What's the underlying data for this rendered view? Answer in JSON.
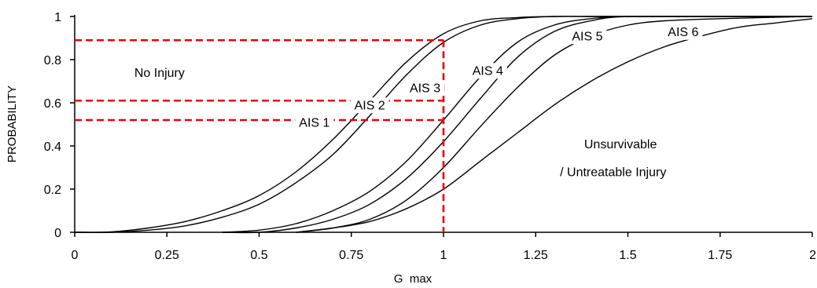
{
  "chart_data": {
    "type": "line",
    "xlabel": "G  max",
    "ylabel": "PROBABILITY",
    "xlim": [
      0,
      2
    ],
    "ylim": [
      0,
      1
    ],
    "x_ticks": [
      "0",
      "0.25",
      "0.5",
      "0.75",
      "1",
      "1.25",
      "1.5",
      "1.75",
      "2"
    ],
    "y_ticks": [
      "0",
      "0.2",
      "0.4",
      "0.6",
      "0.8",
      "1"
    ],
    "grid": false,
    "series": [
      {
        "name": "AIS 1",
        "x": [
          0.0,
          0.1,
          0.2,
          0.3,
          0.4,
          0.5,
          0.6,
          0.7,
          0.8,
          0.9,
          1.0,
          1.1,
          1.2,
          1.3,
          1.4,
          1.5,
          1.75,
          2.0
        ],
        "y": [
          0.0,
          0.002,
          0.02,
          0.05,
          0.1,
          0.17,
          0.28,
          0.43,
          0.61,
          0.79,
          0.92,
          0.98,
          0.995,
          1.0,
          1.0,
          1.0,
          1.0,
          1.0
        ]
      },
      {
        "name": "AIS 2",
        "x": [
          0.0,
          0.1,
          0.2,
          0.3,
          0.4,
          0.5,
          0.6,
          0.7,
          0.8,
          0.9,
          1.0,
          1.1,
          1.2,
          1.3,
          1.4,
          1.5,
          1.75,
          2.0
        ],
        "y": [
          0.0,
          0.0,
          0.01,
          0.03,
          0.07,
          0.13,
          0.23,
          0.36,
          0.54,
          0.73,
          0.88,
          0.96,
          0.99,
          1.0,
          1.0,
          1.0,
          1.0,
          1.0
        ]
      },
      {
        "name": "AIS 3",
        "x": [
          0.4,
          0.5,
          0.6,
          0.7,
          0.8,
          0.9,
          1.0,
          1.1,
          1.2,
          1.3,
          1.4,
          1.5,
          1.75,
          2.0
        ],
        "y": [
          0.0,
          0.01,
          0.04,
          0.1,
          0.19,
          0.33,
          0.52,
          0.72,
          0.88,
          0.96,
          0.99,
          1.0,
          1.0,
          1.0
        ]
      },
      {
        "name": "AIS 4",
        "x": [
          0.4,
          0.5,
          0.6,
          0.7,
          0.8,
          0.9,
          1.0,
          1.1,
          1.2,
          1.3,
          1.4,
          1.5,
          1.75,
          2.0
        ],
        "y": [
          0.0,
          0.0,
          0.02,
          0.06,
          0.13,
          0.25,
          0.42,
          0.62,
          0.81,
          0.93,
          0.98,
          1.0,
          1.0,
          1.0
        ]
      },
      {
        "name": "AIS 5",
        "x": [
          0.6,
          0.7,
          0.8,
          0.9,
          1.0,
          1.1,
          1.2,
          1.3,
          1.4,
          1.5,
          1.6,
          1.75,
          2.0
        ],
        "y": [
          0.0,
          0.02,
          0.06,
          0.15,
          0.3,
          0.49,
          0.67,
          0.82,
          0.91,
          0.96,
          0.98,
          0.99,
          1.0
        ]
      },
      {
        "name": "AIS 6",
        "x": [
          0.6,
          0.7,
          0.8,
          0.9,
          1.0,
          1.1,
          1.2,
          1.3,
          1.4,
          1.5,
          1.6,
          1.7,
          1.8,
          1.9,
          2.0
        ],
        "y": [
          0.0,
          0.02,
          0.05,
          0.11,
          0.2,
          0.33,
          0.46,
          0.59,
          0.7,
          0.79,
          0.86,
          0.91,
          0.95,
          0.97,
          0.99
        ]
      }
    ],
    "reference_lines": [
      {
        "x": 1,
        "y": 0.89
      },
      {
        "x": 1,
        "y": 0.61
      },
      {
        "x": 1,
        "y": 0.52
      }
    ],
    "reference_color": "#e8000b",
    "annotations": [
      {
        "text": "No Injury",
        "x": 0.23,
        "y": 0.72
      },
      {
        "text": "AIS 1",
        "x": 0.65,
        "y": 0.49
      },
      {
        "text": "AIS 2",
        "x": 0.8,
        "y": 0.57
      },
      {
        "text": "AIS 3",
        "x": 0.95,
        "y": 0.65
      },
      {
        "text": "AIS 4",
        "x": 1.12,
        "y": 0.73
      },
      {
        "text": "AIS 5",
        "x": 1.39,
        "y": 0.89
      },
      {
        "text": "AIS 6",
        "x": 1.65,
        "y": 0.91
      },
      {
        "text": "Unsurvivable",
        "x": 1.48,
        "y": 0.39
      },
      {
        "text": "/ Untreatable Injury",
        "x": 1.46,
        "y": 0.26
      }
    ]
  }
}
